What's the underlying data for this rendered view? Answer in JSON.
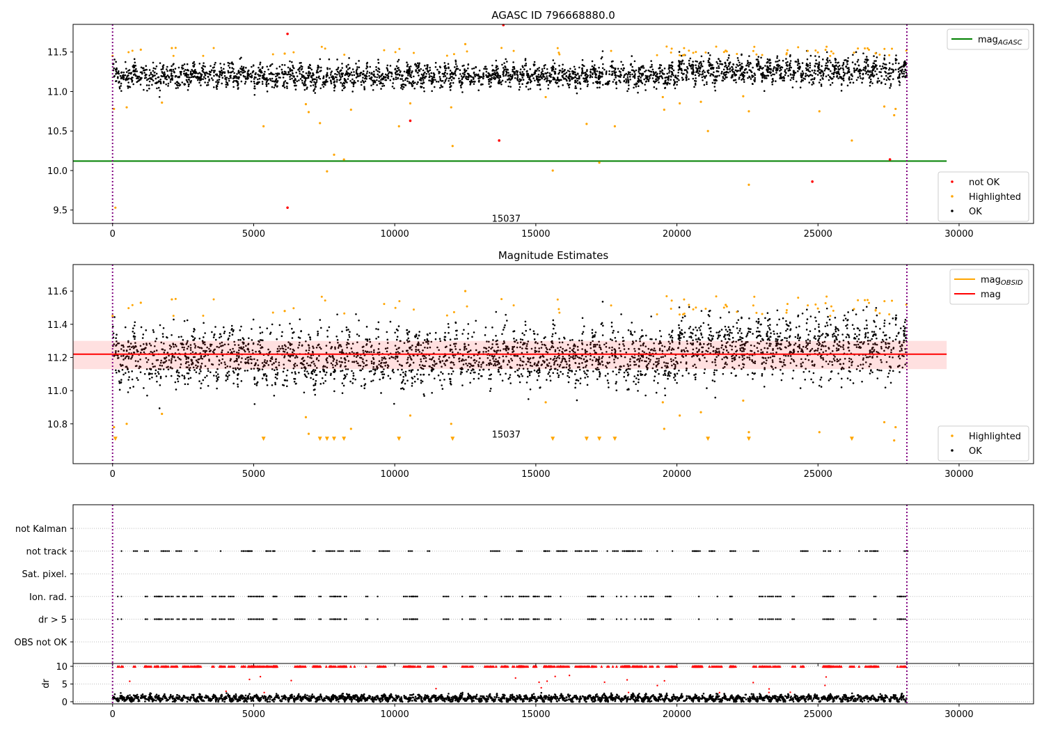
{
  "chart_data": [
    {
      "type": "scatter",
      "title": "AGASC ID 796668880.0",
      "xlim": [
        -1400,
        32640
      ],
      "ylim": [
        9.33,
        11.85
      ],
      "xticks": [
        0,
        5000,
        10000,
        15000,
        20000,
        25000,
        30000
      ],
      "yticks": [
        9.5,
        10.0,
        10.5,
        11.0,
        11.5
      ],
      "vlines": [
        0,
        28150
      ],
      "hline": {
        "name": "mag",
        "subscript": "AGASC",
        "value": 10.12,
        "xmax": 29560,
        "color": "#008000"
      },
      "annotation": "15037",
      "annotation_at": [
        13950,
        9.38
      ],
      "ok_series": {
        "name": "OK",
        "color": "#000000",
        "n": 3200,
        "xmax": 28150,
        "mean": 11.2,
        "mean_late": 11.26,
        "spread": 0.07
      },
      "highlighted": {
        "name": "Highlighted",
        "color": "#ffa500",
        "points": [
          [
            0,
            11.45
          ],
          [
            50,
            10.78
          ],
          [
            100,
            9.53
          ],
          [
            500,
            10.8
          ],
          [
            1000,
            11.53
          ],
          [
            1750,
            10.86
          ],
          [
            2100,
            11.55
          ],
          [
            5350,
            10.56
          ],
          [
            6100,
            11.48
          ],
          [
            6850,
            10.84
          ],
          [
            6950,
            10.74
          ],
          [
            7350,
            10.6
          ],
          [
            7600,
            9.99
          ],
          [
            7850,
            10.2
          ],
          [
            8200,
            10.14
          ],
          [
            8450,
            10.77
          ],
          [
            10150,
            10.56
          ],
          [
            10550,
            10.85
          ],
          [
            12000,
            10.8
          ],
          [
            12050,
            10.31
          ],
          [
            12500,
            11.6
          ],
          [
            15350,
            10.93
          ],
          [
            15600,
            10.0
          ],
          [
            16800,
            10.59
          ],
          [
            17250,
            10.1
          ],
          [
            17800,
            10.56
          ],
          [
            19500,
            10.93
          ],
          [
            19550,
            10.77
          ],
          [
            20100,
            10.85
          ],
          [
            20850,
            10.87
          ],
          [
            21100,
            10.5
          ],
          [
            22350,
            10.94
          ],
          [
            22550,
            10.75
          ],
          [
            22550,
            9.82
          ],
          [
            25050,
            10.75
          ],
          [
            26200,
            10.38
          ],
          [
            27350,
            10.81
          ],
          [
            27700,
            10.7
          ],
          [
            27750,
            10.78
          ]
        ]
      },
      "not_ok": {
        "name": "not OK",
        "color": "#ff0000",
        "points": [
          [
            6200,
            11.73
          ],
          [
            6200,
            9.53
          ],
          [
            10550,
            10.63
          ],
          [
            13700,
            10.38
          ],
          [
            13850,
            11.85
          ],
          [
            24800,
            9.86
          ],
          [
            27550,
            10.14
          ]
        ]
      },
      "legends": [
        [
          "mag_AGASC"
        ],
        [
          "not OK",
          "Highlighted",
          "OK"
        ]
      ]
    },
    {
      "type": "scatter",
      "title": "Magnitude Estimates",
      "xlim": [
        -1400,
        32640
      ],
      "ylim": [
        10.56,
        11.76
      ],
      "xticks": [
        0,
        5000,
        10000,
        15000,
        20000,
        25000,
        30000
      ],
      "yticks": [
        10.8,
        11.0,
        11.2,
        11.4,
        11.6
      ],
      "vlines": [
        0,
        28150
      ],
      "mag_line": {
        "name": "mag",
        "value": 11.22,
        "band": [
          11.13,
          11.3
        ],
        "xmax": 29560,
        "color": "#ff0000"
      },
      "mag_obsid": {
        "name": "mag",
        "subscript": "OBSID",
        "color": "#ffa500"
      },
      "annotation": "15037",
      "annotation_at": [
        13950,
        10.73
      ],
      "legends": [
        [
          "mag_OBSID",
          "mag"
        ],
        [
          "Highlighted",
          "OK"
        ]
      ]
    },
    {
      "type": "scatter",
      "title": "",
      "categories": [
        "OBS not OK",
        "dr > 5",
        "Ion. rad.",
        "Sat. pixel.",
        "not track",
        "not Kalman"
      ],
      "flag_clusters": {
        "n_not_track": 70,
        "n_ion": 85
      }
    },
    {
      "type": "scatter",
      "ylabel": "dr",
      "ylim": [
        -0.6,
        10.8
      ],
      "yticks": [
        0,
        5,
        10
      ],
      "xticks": [
        0,
        5000,
        10000,
        15000,
        20000,
        25000,
        30000
      ],
      "dr_series": {
        "mean": 1.0,
        "spread": 0.6,
        "n": 3000
      },
      "capped_value": 10
    }
  ]
}
